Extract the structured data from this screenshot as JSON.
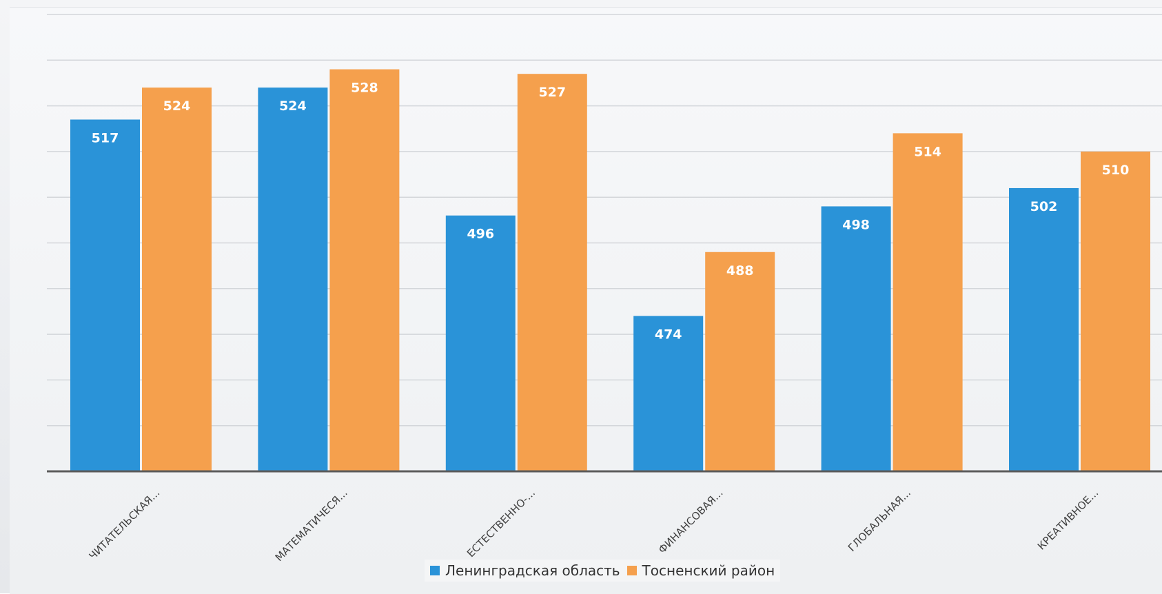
{
  "chart_data": {
    "type": "bar",
    "title": "",
    "xlabel": "",
    "ylabel": "",
    "categories": [
      "ЧИТАТЕЛЬСКАЯ...",
      "МАТЕМАТИЧЕСЯ...",
      "ЕСТЕСТВЕННО-...",
      "ФИНАНСОВАЯ...",
      "ГЛОБАЛЬНАЯ...",
      "КРЕАТИВНОЕ..."
    ],
    "series": [
      {
        "name": "Ленинградская область",
        "color": "#2a93d8",
        "values": [
          517,
          524,
          496,
          474,
          498,
          502
        ]
      },
      {
        "name": "Тосненский район",
        "color": "#f5a04d",
        "values": [
          524,
          528,
          527,
          488,
          514,
          510
        ]
      }
    ],
    "ylim": [
      440,
      540
    ],
    "grid": true,
    "legend_position": "bottom-center",
    "data_labels": true
  }
}
